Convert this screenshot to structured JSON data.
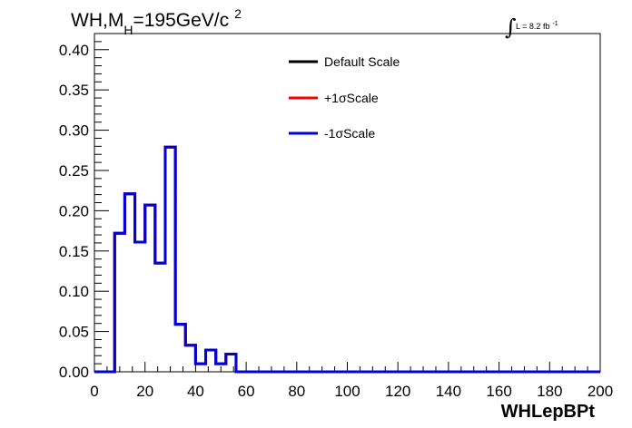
{
  "title": {
    "prefix": "WH,M",
    "subscript": "H",
    "suffix": "=195GeV/c",
    "superscript": "2"
  },
  "luminosity": {
    "integral_symbol": "∫",
    "text": "L = 8.2 fb",
    "superscript": "-1"
  },
  "chart_data": {
    "type": "line",
    "style": "step-histogram",
    "xlabel": "WHLepBPt",
    "ylabel": "",
    "xlim": [
      0,
      200
    ],
    "ylim": [
      0,
      0.42
    ],
    "x_ticks": [
      "0",
      "20",
      "40",
      "60",
      "80",
      "100",
      "120",
      "140",
      "160",
      "180",
      "200"
    ],
    "y_ticks": [
      "0.00",
      "0.05",
      "0.10",
      "0.15",
      "0.20",
      "0.25",
      "0.30",
      "0.35",
      "0.40"
    ],
    "bin_edges": [
      0,
      4,
      8,
      12,
      16,
      20,
      24,
      28,
      32,
      36,
      40,
      44,
      48,
      52,
      56,
      60,
      64,
      68,
      72,
      76,
      80,
      84,
      88,
      92,
      96,
      100,
      104,
      108,
      112,
      116,
      120,
      124,
      128,
      132,
      136,
      140,
      144,
      148,
      152,
      156,
      160,
      164,
      168,
      172,
      176,
      180,
      184,
      188,
      192,
      196,
      200
    ],
    "series": [
      {
        "name": "Default Scale",
        "color": "#000000",
        "values": [
          0,
          0,
          0.172,
          0.221,
          0.161,
          0.207,
          0.135,
          0.279,
          0.059,
          0.033,
          0.01,
          0.027,
          0.01,
          0.022,
          0,
          0,
          0,
          0,
          0,
          0,
          0,
          0,
          0,
          0,
          0,
          0,
          0,
          0,
          0,
          0,
          0,
          0,
          0,
          0,
          0,
          0,
          0,
          0,
          0,
          0,
          0,
          0,
          0,
          0,
          0,
          0,
          0,
          0,
          0,
          0
        ]
      },
      {
        "name": "+1σScale",
        "color": "#ff0000",
        "values": [
          0,
          0,
          0.172,
          0.221,
          0.161,
          0.207,
          0.135,
          0.279,
          0.059,
          0.033,
          0.01,
          0.027,
          0.01,
          0.022,
          0,
          0,
          0,
          0,
          0,
          0,
          0,
          0,
          0,
          0,
          0,
          0,
          0,
          0,
          0,
          0,
          0,
          0,
          0,
          0,
          0,
          0,
          0,
          0,
          0,
          0,
          0,
          0,
          0,
          0,
          0,
          0,
          0,
          0,
          0,
          0
        ]
      },
      {
        "name": "-1σScale",
        "color": "#0000dd",
        "values": [
          0,
          0,
          0.172,
          0.221,
          0.161,
          0.207,
          0.135,
          0.279,
          0.059,
          0.033,
          0.01,
          0.027,
          0.01,
          0.022,
          0,
          0,
          0,
          0,
          0,
          0,
          0,
          0,
          0,
          0,
          0,
          0,
          0,
          0,
          0,
          0,
          0,
          0,
          0,
          0,
          0,
          0,
          0,
          0,
          0,
          0,
          0,
          0,
          0,
          0,
          0,
          0,
          0,
          0,
          0,
          0
        ]
      }
    ],
    "legend_placement": "top-center",
    "grid": false
  }
}
